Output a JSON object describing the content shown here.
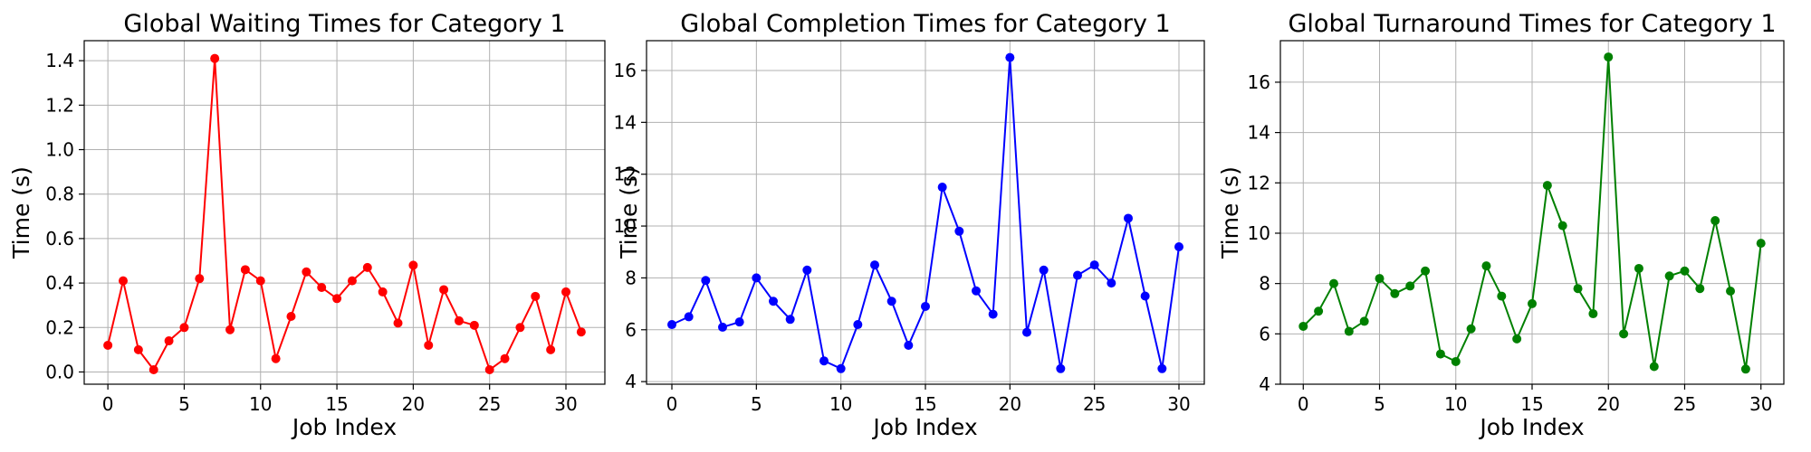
{
  "chart_data": [
    {
      "type": "line",
      "title": "Global Waiting Times for Category 1",
      "xlabel": "Job Index",
      "ylabel": "Time (s)",
      "xlim": [
        -1.55,
        32.55
      ],
      "ylim": [
        -0.055,
        1.49
      ],
      "xticks": [
        0,
        5,
        10,
        15,
        20,
        25,
        30
      ],
      "yticks": [
        0.0,
        0.2,
        0.4,
        0.6,
        0.8,
        1.0,
        1.2,
        1.4
      ],
      "ytick_labels": [
        "0.0",
        "0.2",
        "0.4",
        "0.6",
        "0.8",
        "1.0",
        "1.2",
        "1.4"
      ],
      "grid": true,
      "color": "#ff0000",
      "x": [
        0,
        1,
        2,
        3,
        4,
        5,
        6,
        7,
        8,
        9,
        10,
        11,
        12,
        13,
        14,
        15,
        16,
        17,
        18,
        19,
        20,
        21,
        22,
        23,
        24,
        25,
        26,
        27,
        28,
        29,
        30,
        31
      ],
      "values": [
        0.12,
        0.41,
        0.1,
        0.01,
        0.14,
        0.2,
        0.42,
        1.41,
        0.19,
        0.46,
        0.41,
        0.06,
        0.25,
        0.45,
        0.38,
        0.33,
        0.41,
        0.47,
        0.36,
        0.22,
        0.48,
        0.12,
        0.37,
        0.23,
        0.21,
        0.01,
        0.06,
        0.2,
        0.34,
        0.1,
        0.36,
        0.18
      ]
    },
    {
      "type": "line",
      "title": "Global Completion Times for Category 1",
      "xlabel": "Job Index",
      "ylabel": "Time (s)",
      "xlim": [
        -1.5,
        31.5
      ],
      "ylim": [
        3.9,
        17.15
      ],
      "xticks": [
        0,
        5,
        10,
        15,
        20,
        25,
        30
      ],
      "yticks": [
        4,
        6,
        8,
        10,
        12,
        14,
        16
      ],
      "ytick_labels": [
        "4",
        "6",
        "8",
        "10",
        "12",
        "14",
        "16"
      ],
      "grid": true,
      "color": "#0000ff",
      "x": [
        0,
        1,
        2,
        3,
        4,
        5,
        6,
        7,
        8,
        9,
        10,
        11,
        12,
        13,
        14,
        15,
        16,
        17,
        18,
        19,
        20,
        21,
        22,
        23,
        24,
        25,
        26,
        27,
        28,
        29,
        30
      ],
      "values": [
        6.2,
        6.5,
        7.9,
        6.1,
        6.3,
        8.0,
        7.1,
        6.4,
        8.3,
        4.8,
        4.5,
        6.2,
        8.5,
        7.1,
        5.4,
        6.9,
        11.5,
        9.8,
        7.5,
        6.6,
        16.5,
        5.9,
        8.3,
        4.5,
        8.1,
        8.5,
        7.8,
        10.3,
        7.3,
        4.5,
        9.2
      ]
    },
    {
      "type": "line",
      "title": "Global Turnaround Times for Category 1",
      "xlabel": "Job Index",
      "ylabel": "Time (s)",
      "xlim": [
        -1.5,
        31.5
      ],
      "ylim": [
        4.0,
        17.65
      ],
      "xticks": [
        0,
        5,
        10,
        15,
        20,
        25,
        30
      ],
      "yticks": [
        4,
        6,
        8,
        10,
        12,
        14,
        16
      ],
      "ytick_labels": [
        "4",
        "6",
        "8",
        "10",
        "12",
        "14",
        "16"
      ],
      "grid": true,
      "color": "#008000",
      "x": [
        0,
        1,
        2,
        3,
        4,
        5,
        6,
        7,
        8,
        9,
        10,
        11,
        12,
        13,
        14,
        15,
        16,
        17,
        18,
        19,
        20,
        21,
        22,
        23,
        24,
        25,
        26,
        27,
        28,
        29,
        30
      ],
      "values": [
        6.3,
        6.9,
        8.0,
        6.1,
        6.5,
        8.2,
        7.6,
        7.9,
        8.5,
        5.2,
        4.9,
        6.2,
        8.7,
        7.5,
        5.8,
        7.2,
        11.9,
        10.3,
        7.8,
        6.8,
        17.0,
        6.0,
        8.6,
        4.7,
        8.3,
        8.5,
        7.8,
        10.5,
        7.7,
        4.6,
        9.6
      ]
    }
  ]
}
